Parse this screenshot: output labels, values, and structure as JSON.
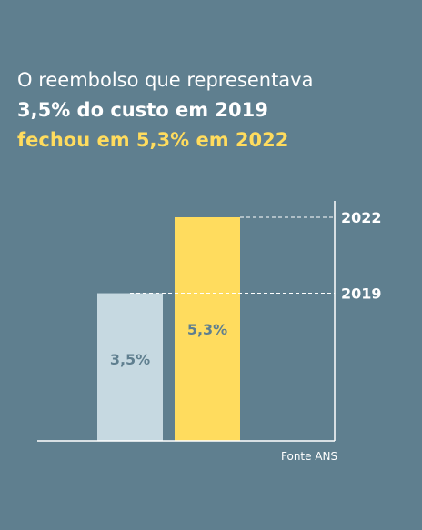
{
  "headline": {
    "line1": "O reembolso que representava",
    "line2": "3,5% do custo em 2019",
    "line3": "fechou em 5,3% em 2022"
  },
  "chart_data": {
    "type": "bar",
    "categories": [
      "2019",
      "2022"
    ],
    "values": [
      3.5,
      5.3
    ],
    "value_labels": [
      "3,5%",
      "5,3%"
    ],
    "reference_labels": [
      "2019",
      "2022"
    ],
    "colors": [
      "#c6d9e1",
      "#ffdc5e"
    ],
    "label_colors": [
      "#5f7f8f",
      "#5f7f8f"
    ],
    "unit": "%",
    "ylim": [
      0,
      5.3
    ],
    "grid": false,
    "source": "Fonte ANS"
  }
}
